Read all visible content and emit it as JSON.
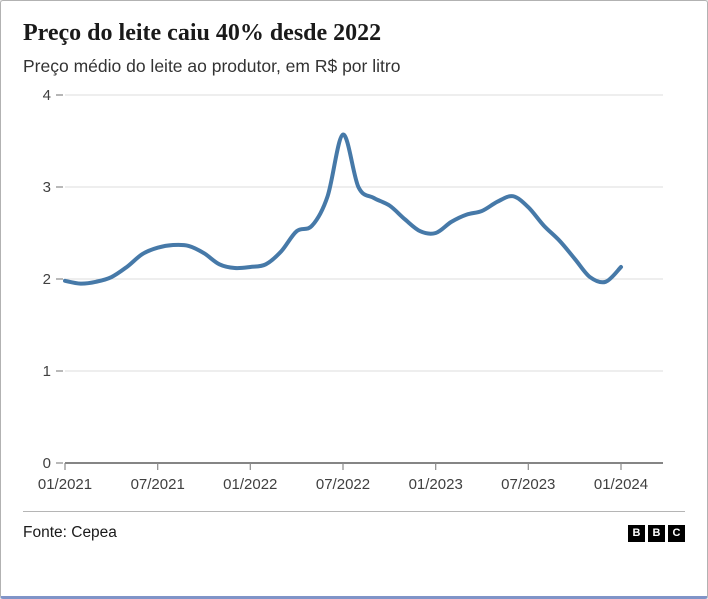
{
  "header": {
    "title": "Preço do leite caiu 40% desde 2022",
    "subtitle": "Preço médio do leite ao produtor, em R$ por litro"
  },
  "footer": {
    "source": "Fonte: Cepea",
    "logo_letters": [
      "B",
      "B",
      "C"
    ]
  },
  "chart_data": {
    "type": "line",
    "title": "Preço do leite caiu 40% desde 2022",
    "subtitle": "Preço médio do leite ao produtor, em R$ por litro",
    "source": "Fonte: Cepea",
    "months": [
      "01/2021",
      "02/2021",
      "03/2021",
      "04/2021",
      "05/2021",
      "06/2021",
      "07/2021",
      "08/2021",
      "09/2021",
      "10/2021",
      "11/2021",
      "12/2021",
      "01/2022",
      "02/2022",
      "03/2022",
      "04/2022",
      "05/2022",
      "06/2022",
      "07/2022",
      "08/2022",
      "09/2022",
      "10/2022",
      "11/2022",
      "12/2022",
      "01/2023",
      "02/2023",
      "03/2023",
      "04/2023",
      "05/2023",
      "06/2023",
      "07/2023",
      "08/2023",
      "09/2023",
      "10/2023",
      "11/2023",
      "12/2023",
      "01/2024"
    ],
    "values": [
      1.98,
      1.95,
      1.97,
      2.02,
      2.13,
      2.27,
      2.34,
      2.37,
      2.36,
      2.28,
      2.16,
      2.12,
      2.13,
      2.16,
      2.3,
      2.52,
      2.58,
      2.9,
      3.57,
      3.0,
      2.88,
      2.8,
      2.65,
      2.52,
      2.5,
      2.62,
      2.7,
      2.74,
      2.84,
      2.9,
      2.78,
      2.58,
      2.42,
      2.22,
      2.02,
      1.97,
      2.13
    ],
    "x_tick_labels": [
      "01/2021",
      "07/2021",
      "01/2022",
      "07/2022",
      "01/2023",
      "07/2023",
      "01/2024"
    ],
    "x_tick_indices": [
      0,
      6,
      12,
      18,
      24,
      30,
      36
    ],
    "yticks": [
      0,
      1,
      2,
      3,
      4
    ],
    "ylim": [
      0,
      4
    ],
    "grid": true,
    "legend": "none",
    "line_color": "#4679a8",
    "grid_color": "#dedede",
    "baseline_color": "#3c3c3c",
    "tick_color": "#8a8a8a",
    "label_color": "#404040"
  }
}
